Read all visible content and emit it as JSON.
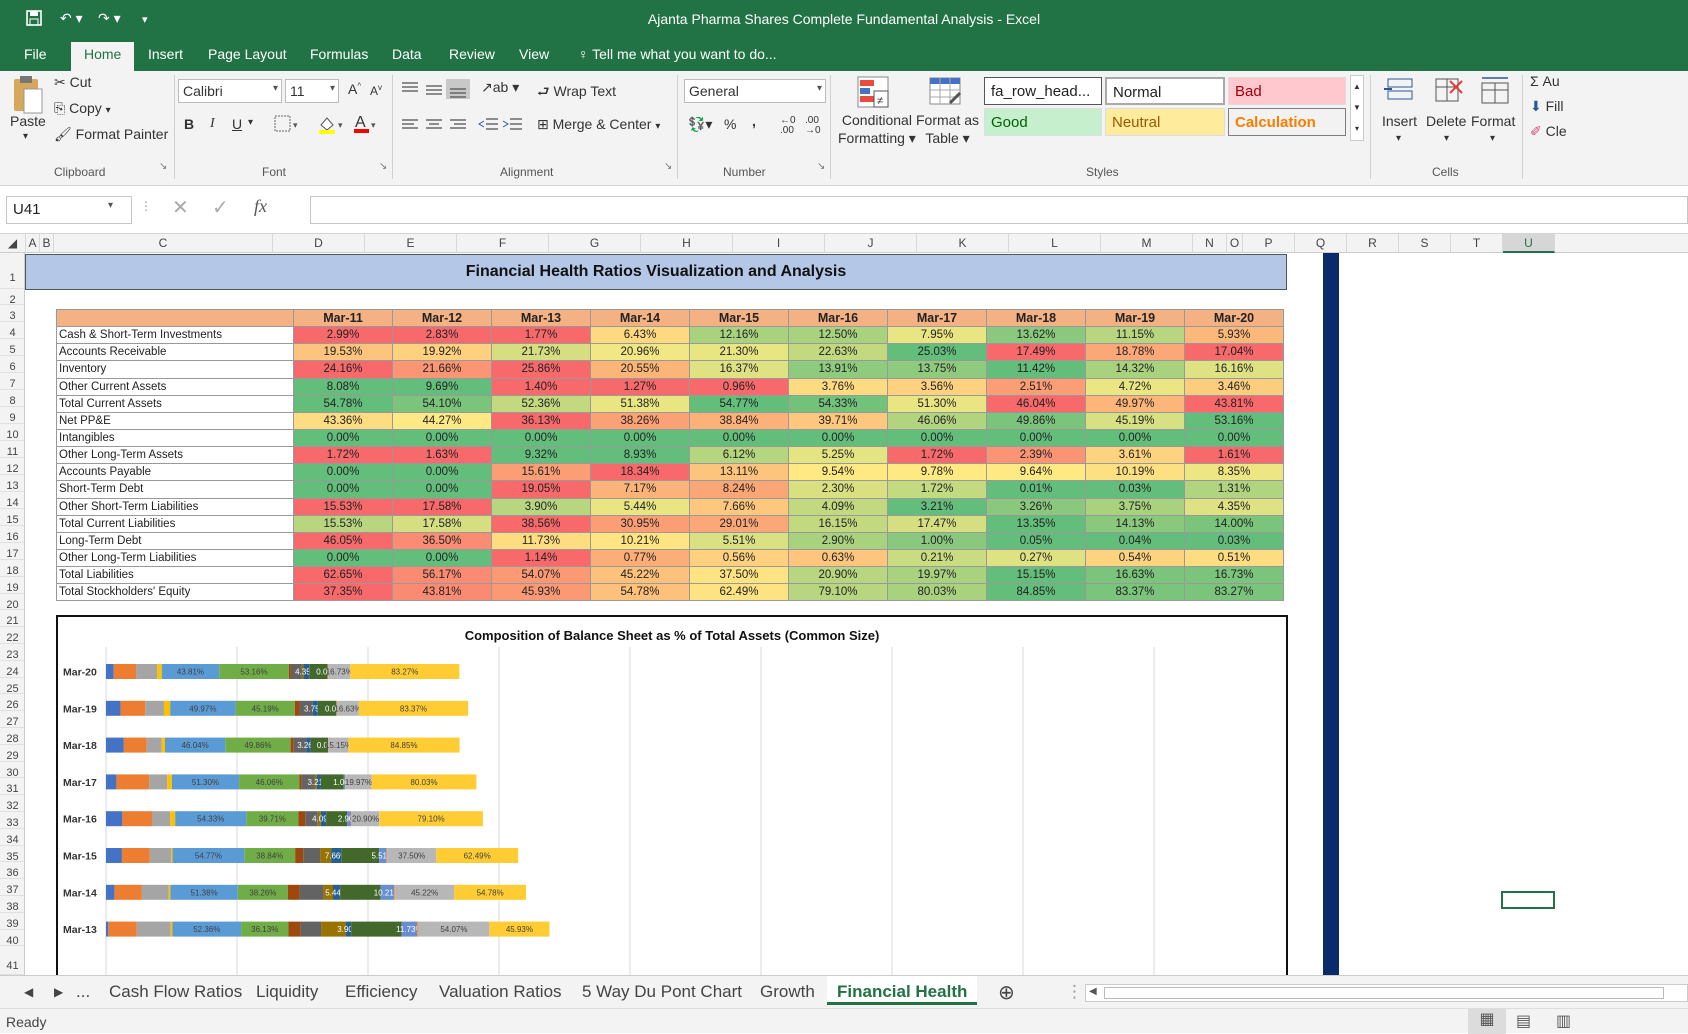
{
  "window": {
    "title": "Ajanta Pharma Shares Complete Fundamental Analysis - Excel"
  },
  "menu": [
    "File",
    "Home",
    "Insert",
    "Page Layout",
    "Formulas",
    "Data",
    "Review",
    "View"
  ],
  "tell_me": "Tell me what you want to do...",
  "ribbon": {
    "clipboard": {
      "paste": "Paste",
      "cut": "Cut",
      "copy": "Copy",
      "format_painter": "Format Painter",
      "label": "Clipboard"
    },
    "font": {
      "name": "Calibri",
      "size": "11",
      "label": "Font",
      "bold": "B",
      "italic": "I",
      "underline": "U"
    },
    "alignment": {
      "wrap_text": "Wrap Text",
      "merge_center": "Merge & Center",
      "label": "Alignment"
    },
    "number": {
      "format": "General",
      "percent": "%",
      "comma": ",",
      "label": "Number"
    },
    "styles": {
      "conditional": "Conditional",
      "formatting": "Formatting",
      "format_as": "Format as",
      "table": "Table",
      "cells": [
        {
          "label": "fa_row_head...",
          "bg": "#ffffff",
          "fg": "#000000"
        },
        {
          "label": "Normal",
          "bg": "#ffffff",
          "fg": "#000000"
        },
        {
          "label": "Bad",
          "bg": "#ffc7ce",
          "fg": "#9c0006"
        },
        {
          "label": "Good",
          "bg": "#c6efce",
          "fg": "#006100"
        },
        {
          "label": "Neutral",
          "bg": "#ffeb9c",
          "fg": "#9c5700"
        },
        {
          "label": "Calculation",
          "bg": "#f2f2f2",
          "fg": "#fa7d00"
        }
      ],
      "label": "Styles"
    },
    "cells": {
      "insert": "Insert",
      "delete": "Delete",
      "format": "Format",
      "label": "Cells"
    },
    "editing": {
      "autosum": "Au",
      "fill": "Fill",
      "clear": "Cle"
    }
  },
  "formula_bar": {
    "name_box": "U41",
    "fx": "fx",
    "content": ""
  },
  "columns": [
    "A",
    "B",
    "C",
    "D",
    "E",
    "F",
    "G",
    "H",
    "I",
    "J",
    "K",
    "L",
    "M",
    "N",
    "O",
    "P",
    "Q",
    "R",
    "S",
    "T",
    "U"
  ],
  "rows": [
    "1",
    "2",
    "3",
    "4",
    "5",
    "6",
    "7",
    "8",
    "9",
    "10",
    "11",
    "12",
    "13",
    "14",
    "15",
    "16",
    "17",
    "18",
    "19",
    "20",
    "21",
    "22",
    "23",
    "24",
    "25",
    "26",
    "27",
    "28",
    "29",
    "30",
    "31",
    "32",
    "33",
    "34",
    "35",
    "36",
    "37",
    "38",
    "39",
    "40",
    "41"
  ],
  "sheet_title": "Financial Health Ratios Visualization and Analysis",
  "table": {
    "years": [
      "Mar-11",
      "Mar-12",
      "Mar-13",
      "Mar-14",
      "Mar-15",
      "Mar-16",
      "Mar-17",
      "Mar-18",
      "Mar-19",
      "Mar-20"
    ],
    "rows": [
      {
        "label": "Cash & Short-Term Investments",
        "values": [
          "2.99%",
          "2.83%",
          "1.77%",
          "6.43%",
          "12.16%",
          "12.50%",
          "7.95%",
          "13.62%",
          "11.15%",
          "5.93%"
        ],
        "colors": [
          "#f8696b",
          "#f8696b",
          "#f8696b",
          "#fed980",
          "#a9d27f",
          "#a9d27f",
          "#e9e583",
          "#8ac97d",
          "#b8d680",
          "#fcb77a"
        ]
      },
      {
        "label": "Accounts Receivable",
        "values": [
          "19.53%",
          "19.92%",
          "21.73%",
          "20.96%",
          "21.30%",
          "22.63%",
          "25.03%",
          "17.49%",
          "18.78%",
          "17.04%"
        ],
        "colors": [
          "#fdc47d",
          "#fdd17f",
          "#d5df82",
          "#f1e784",
          "#e8e583",
          "#c2d980",
          "#63be7b",
          "#f8696b",
          "#fca777",
          "#f8696b"
        ]
      },
      {
        "label": "Inventory",
        "values": [
          "24.16%",
          "21.66%",
          "25.86%",
          "20.55%",
          "16.37%",
          "13.91%",
          "13.75%",
          "11.42%",
          "14.32%",
          "16.16%"
        ],
        "colors": [
          "#f8696b",
          "#fb9574",
          "#f8696b",
          "#fcb579",
          "#dee283",
          "#8fcb7e",
          "#8fcb7e",
          "#63be7b",
          "#a9d27f",
          "#dee283"
        ]
      },
      {
        "label": "Other Current Assets",
        "values": [
          "8.08%",
          "9.69%",
          "1.40%",
          "1.27%",
          "0.96%",
          "3.76%",
          "3.56%",
          "2.51%",
          "4.72%",
          "3.46%"
        ],
        "colors": [
          "#63be7b",
          "#63be7b",
          "#f8696b",
          "#f8696b",
          "#f8696b",
          "#fedb81",
          "#fdd17f",
          "#fb9d75",
          "#ebe683",
          "#fdcd7e"
        ]
      },
      {
        "label": "Total Current Assets",
        "values": [
          "54.78%",
          "54.10%",
          "52.36%",
          "51.38%",
          "54.77%",
          "54.33%",
          "51.30%",
          "46.04%",
          "49.97%",
          "43.81%"
        ],
        "colors": [
          "#63be7b",
          "#7ac47c",
          "#c2d980",
          "#eae583",
          "#63be7b",
          "#72c27c",
          "#eae583",
          "#f8696b",
          "#fcb679",
          "#f8696b"
        ]
      },
      {
        "label": "Net PP&E",
        "values": [
          "43.36%",
          "44.27%",
          "36.13%",
          "38.26%",
          "38.84%",
          "39.71%",
          "46.06%",
          "49.86%",
          "45.19%",
          "53.16%"
        ],
        "colors": [
          "#fedc81",
          "#ffe984",
          "#f8696b",
          "#fba176",
          "#fcb179",
          "#fdc87d",
          "#b1d47f",
          "#7ac47c",
          "#d7e082",
          "#63be7b"
        ]
      },
      {
        "label": "Intangibles",
        "values": [
          "0.00%",
          "0.00%",
          "0.00%",
          "0.00%",
          "0.00%",
          "0.00%",
          "0.00%",
          "0.00%",
          "0.00%",
          "0.00%"
        ],
        "colors": [
          "#63be7b",
          "#63be7b",
          "#63be7b",
          "#63be7b",
          "#63be7b",
          "#63be7b",
          "#63be7b",
          "#63be7b",
          "#63be7b",
          "#63be7b"
        ]
      },
      {
        "label": "Other Long-Term Assets",
        "values": [
          "1.72%",
          "1.63%",
          "9.32%",
          "8.93%",
          "6.12%",
          "5.25%",
          "1.72%",
          "2.39%",
          "3.61%",
          "1.61%"
        ],
        "colors": [
          "#f8696b",
          "#f8696b",
          "#63be7b",
          "#63be7b",
          "#b6d57f",
          "#e5e483",
          "#f8696b",
          "#fb9474",
          "#fed380",
          "#f8696b"
        ]
      },
      {
        "label": "Accounts Payable",
        "values": [
          "0.00%",
          "0.00%",
          "15.61%",
          "18.34%",
          "13.11%",
          "9.54%",
          "9.78%",
          "9.64%",
          "10.19%",
          "8.35%"
        ],
        "colors": [
          "#63be7b",
          "#63be7b",
          "#fc9e75",
          "#f8696b",
          "#fdc47d",
          "#fee983",
          "#fee983",
          "#fee983",
          "#fce082",
          "#eee683"
        ]
      },
      {
        "label": "Short-Term Debt",
        "values": [
          "0.00%",
          "0.00%",
          "19.05%",
          "7.17%",
          "8.24%",
          "2.30%",
          "1.72%",
          "0.01%",
          "0.03%",
          "1.31%"
        ],
        "colors": [
          "#63be7b",
          "#63be7b",
          "#f8696b",
          "#fcb379",
          "#fba677",
          "#d8e082",
          "#c4da80",
          "#63be7b",
          "#63be7b",
          "#b0d47f"
        ]
      },
      {
        "label": "Other Short-Term Liabilities",
        "values": [
          "15.53%",
          "17.58%",
          "3.90%",
          "5.44%",
          "7.66%",
          "4.09%",
          "3.21%",
          "3.26%",
          "3.75%",
          "4.35%"
        ],
        "colors": [
          "#f8696b",
          "#f8696b",
          "#b8d680",
          "#e9e583",
          "#fdc87d",
          "#c2d980",
          "#63be7b",
          "#8ac97d",
          "#a9d27f",
          "#dee283"
        ]
      },
      {
        "label": "Total Current Liabilities",
        "values": [
          "15.53%",
          "17.58%",
          "38.56%",
          "30.95%",
          "29.01%",
          "16.15%",
          "17.47%",
          "13.35%",
          "14.13%",
          "14.00%"
        ],
        "colors": [
          "#b8d680",
          "#d5df82",
          "#f8696b",
          "#fb9d75",
          "#fca777",
          "#c2d980",
          "#d5df82",
          "#63be7b",
          "#8ac97d",
          "#7ac47c"
        ]
      },
      {
        "label": "Long-Term Debt",
        "values": [
          "46.05%",
          "36.50%",
          "11.73%",
          "10.21%",
          "5.51%",
          "2.90%",
          "1.00%",
          "0.05%",
          "0.04%",
          "0.03%"
        ],
        "colors": [
          "#f8696b",
          "#fa8c73",
          "#fedd81",
          "#fee582",
          "#dae182",
          "#a9d27f",
          "#8ac97d",
          "#63be7b",
          "#63be7b",
          "#63be7b"
        ]
      },
      {
        "label": "Other Long-Term Liabilities",
        "values": [
          "0.00%",
          "0.00%",
          "1.14%",
          "0.77%",
          "0.56%",
          "0.63%",
          "0.21%",
          "0.27%",
          "0.54%",
          "0.51%"
        ],
        "colors": [
          "#63be7b",
          "#63be7b",
          "#f8696b",
          "#fcae78",
          "#fed07f",
          "#fdc57d",
          "#c9dc81",
          "#dee283",
          "#fed380",
          "#fedc81"
        ]
      },
      {
        "label": "Total Liabilities",
        "values": [
          "62.65%",
          "56.17%",
          "54.07%",
          "45.22%",
          "37.50%",
          "20.90%",
          "19.97%",
          "15.15%",
          "16.63%",
          "16.73%"
        ],
        "colors": [
          "#f8696b",
          "#fa8b72",
          "#fb9974",
          "#fdc17c",
          "#fee383",
          "#b8d680",
          "#a9d27f",
          "#63be7b",
          "#7ac47c",
          "#7ac47c"
        ]
      },
      {
        "label": "Total Stockholders' Equity",
        "values": [
          "37.35%",
          "43.81%",
          "45.93%",
          "54.78%",
          "62.49%",
          "79.10%",
          "80.03%",
          "84.85%",
          "83.37%",
          "83.27%"
        ],
        "colors": [
          "#f8696b",
          "#fa8b72",
          "#fb9974",
          "#fdc17c",
          "#fee383",
          "#b8d680",
          "#a9d27f",
          "#63be7b",
          "#7ac47c",
          "#7ac47c"
        ]
      }
    ]
  },
  "chart_data": {
    "type": "bar",
    "orientation": "horizontal-stacked",
    "title": "Composition of Balance Sheet as % of Total Assets (Common Size)",
    "categories": [
      "Mar-20",
      "Mar-19",
      "Mar-18",
      "Mar-17",
      "Mar-16",
      "Mar-15",
      "Mar-14",
      "Mar-13"
    ],
    "grid": true,
    "series": [
      {
        "color": "#4472c4",
        "values": [
          5.93,
          11.15,
          13.62,
          7.95,
          12.5,
          12.16,
          6.43,
          1.77
        ]
      },
      {
        "color": "#ed7d31",
        "values": [
          17.04,
          18.78,
          17.49,
          25.03,
          22.63,
          21.3,
          20.96,
          21.73
        ]
      },
      {
        "color": "#a5a5a5",
        "values": [
          16.16,
          14.32,
          11.42,
          13.75,
          13.91,
          16.37,
          20.55,
          25.86
        ]
      },
      {
        "color": "#ffc000",
        "values": [
          3.46,
          4.72,
          2.51,
          3.56,
          3.76,
          0.96,
          1.27,
          1.4
        ]
      },
      {
        "color": "#5b9bd5",
        "values": [
          43.81,
          49.97,
          46.04,
          51.3,
          54.33,
          54.77,
          51.38,
          52.36
        ],
        "labels": [
          "43.81%",
          "49.97%",
          "46.04%",
          "51.30%",
          "54.33%",
          "54.77%",
          "51.38%",
          "52.36%"
        ]
      },
      {
        "color": "#70ad47",
        "values": [
          53.16,
          45.19,
          49.86,
          46.06,
          39.71,
          38.84,
          38.26,
          36.13
        ],
        "labels": [
          "53.16%",
          "45.19%",
          "49.86%",
          "46.06%",
          "39.71%",
          "38.84%",
          "38.26%",
          "36.13%"
        ]
      },
      {
        "color": "#264478",
        "values": [
          0,
          0,
          0,
          0,
          0,
          0,
          0,
          0
        ]
      },
      {
        "color": "#9e480e",
        "values": [
          1.61,
          3.61,
          2.39,
          1.72,
          5.25,
          6.12,
          8.93,
          9.32
        ]
      },
      {
        "color": "#636363",
        "values": [
          8.35,
          10.19,
          9.64,
          9.78,
          9.54,
          13.11,
          18.34,
          15.61
        ]
      },
      {
        "color": "#997300",
        "values": [
          1.31,
          0.03,
          0.01,
          1.72,
          2.3,
          8.24,
          7.17,
          19.05
        ]
      },
      {
        "color": "#255e91",
        "values": [
          4.35,
          3.75,
          3.26,
          3.21,
          4.09,
          7.66,
          5.44,
          3.9
        ],
        "labels": [
          "4.35%",
          "3.75%",
          "3.26%",
          "3.21%",
          "4.09%",
          "7.66%",
          "5.44%",
          "3.90%"
        ]
      },
      {
        "color": "#43682b",
        "values": [
          14.0,
          14.13,
          13.35,
          17.47,
          16.15,
          29.01,
          30.95,
          38.56
        ]
      },
      {
        "color": "#698ed0",
        "values": [
          0.03,
          0.04,
          0.05,
          1.0,
          2.9,
          5.51,
          10.21,
          11.73
        ],
        "labels": [
          "0.03%",
          "0.04%",
          "0.05%",
          "1.00%",
          "2.90%",
          "5.51%",
          "10.21%",
          "11.73%"
        ]
      },
      {
        "color": "#f1975a",
        "values": [
          0.51,
          0.54,
          0.27,
          0.21,
          0.63,
          0.56,
          0.77,
          1.14
        ]
      },
      {
        "color": "#b7b7b7",
        "values": [
          16.73,
          16.63,
          15.15,
          19.97,
          20.9,
          37.5,
          45.22,
          54.07
        ],
        "labels": [
          "16.73%",
          "16.63%",
          "15.15%",
          "19.97%",
          "20.90%",
          "37.50%",
          "45.22%",
          "54.07%"
        ]
      },
      {
        "color": "#ffcd33",
        "values": [
          83.27,
          83.37,
          84.85,
          80.03,
          79.1,
          62.49,
          54.78,
          45.93
        ],
        "labels": [
          "83.27%",
          "83.37%",
          "84.85%",
          "80.03%",
          "79.10%",
          "62.49%",
          "54.78%",
          "45.93%"
        ]
      }
    ]
  },
  "tabs": [
    "...",
    "Cash Flow Ratios",
    "Liquidity",
    "Efficiency",
    "Valuation Ratios",
    "5 Way Du Pont Chart",
    "Growth",
    "Financial Health"
  ],
  "active_tab": "Financial Health",
  "status": "Ready"
}
